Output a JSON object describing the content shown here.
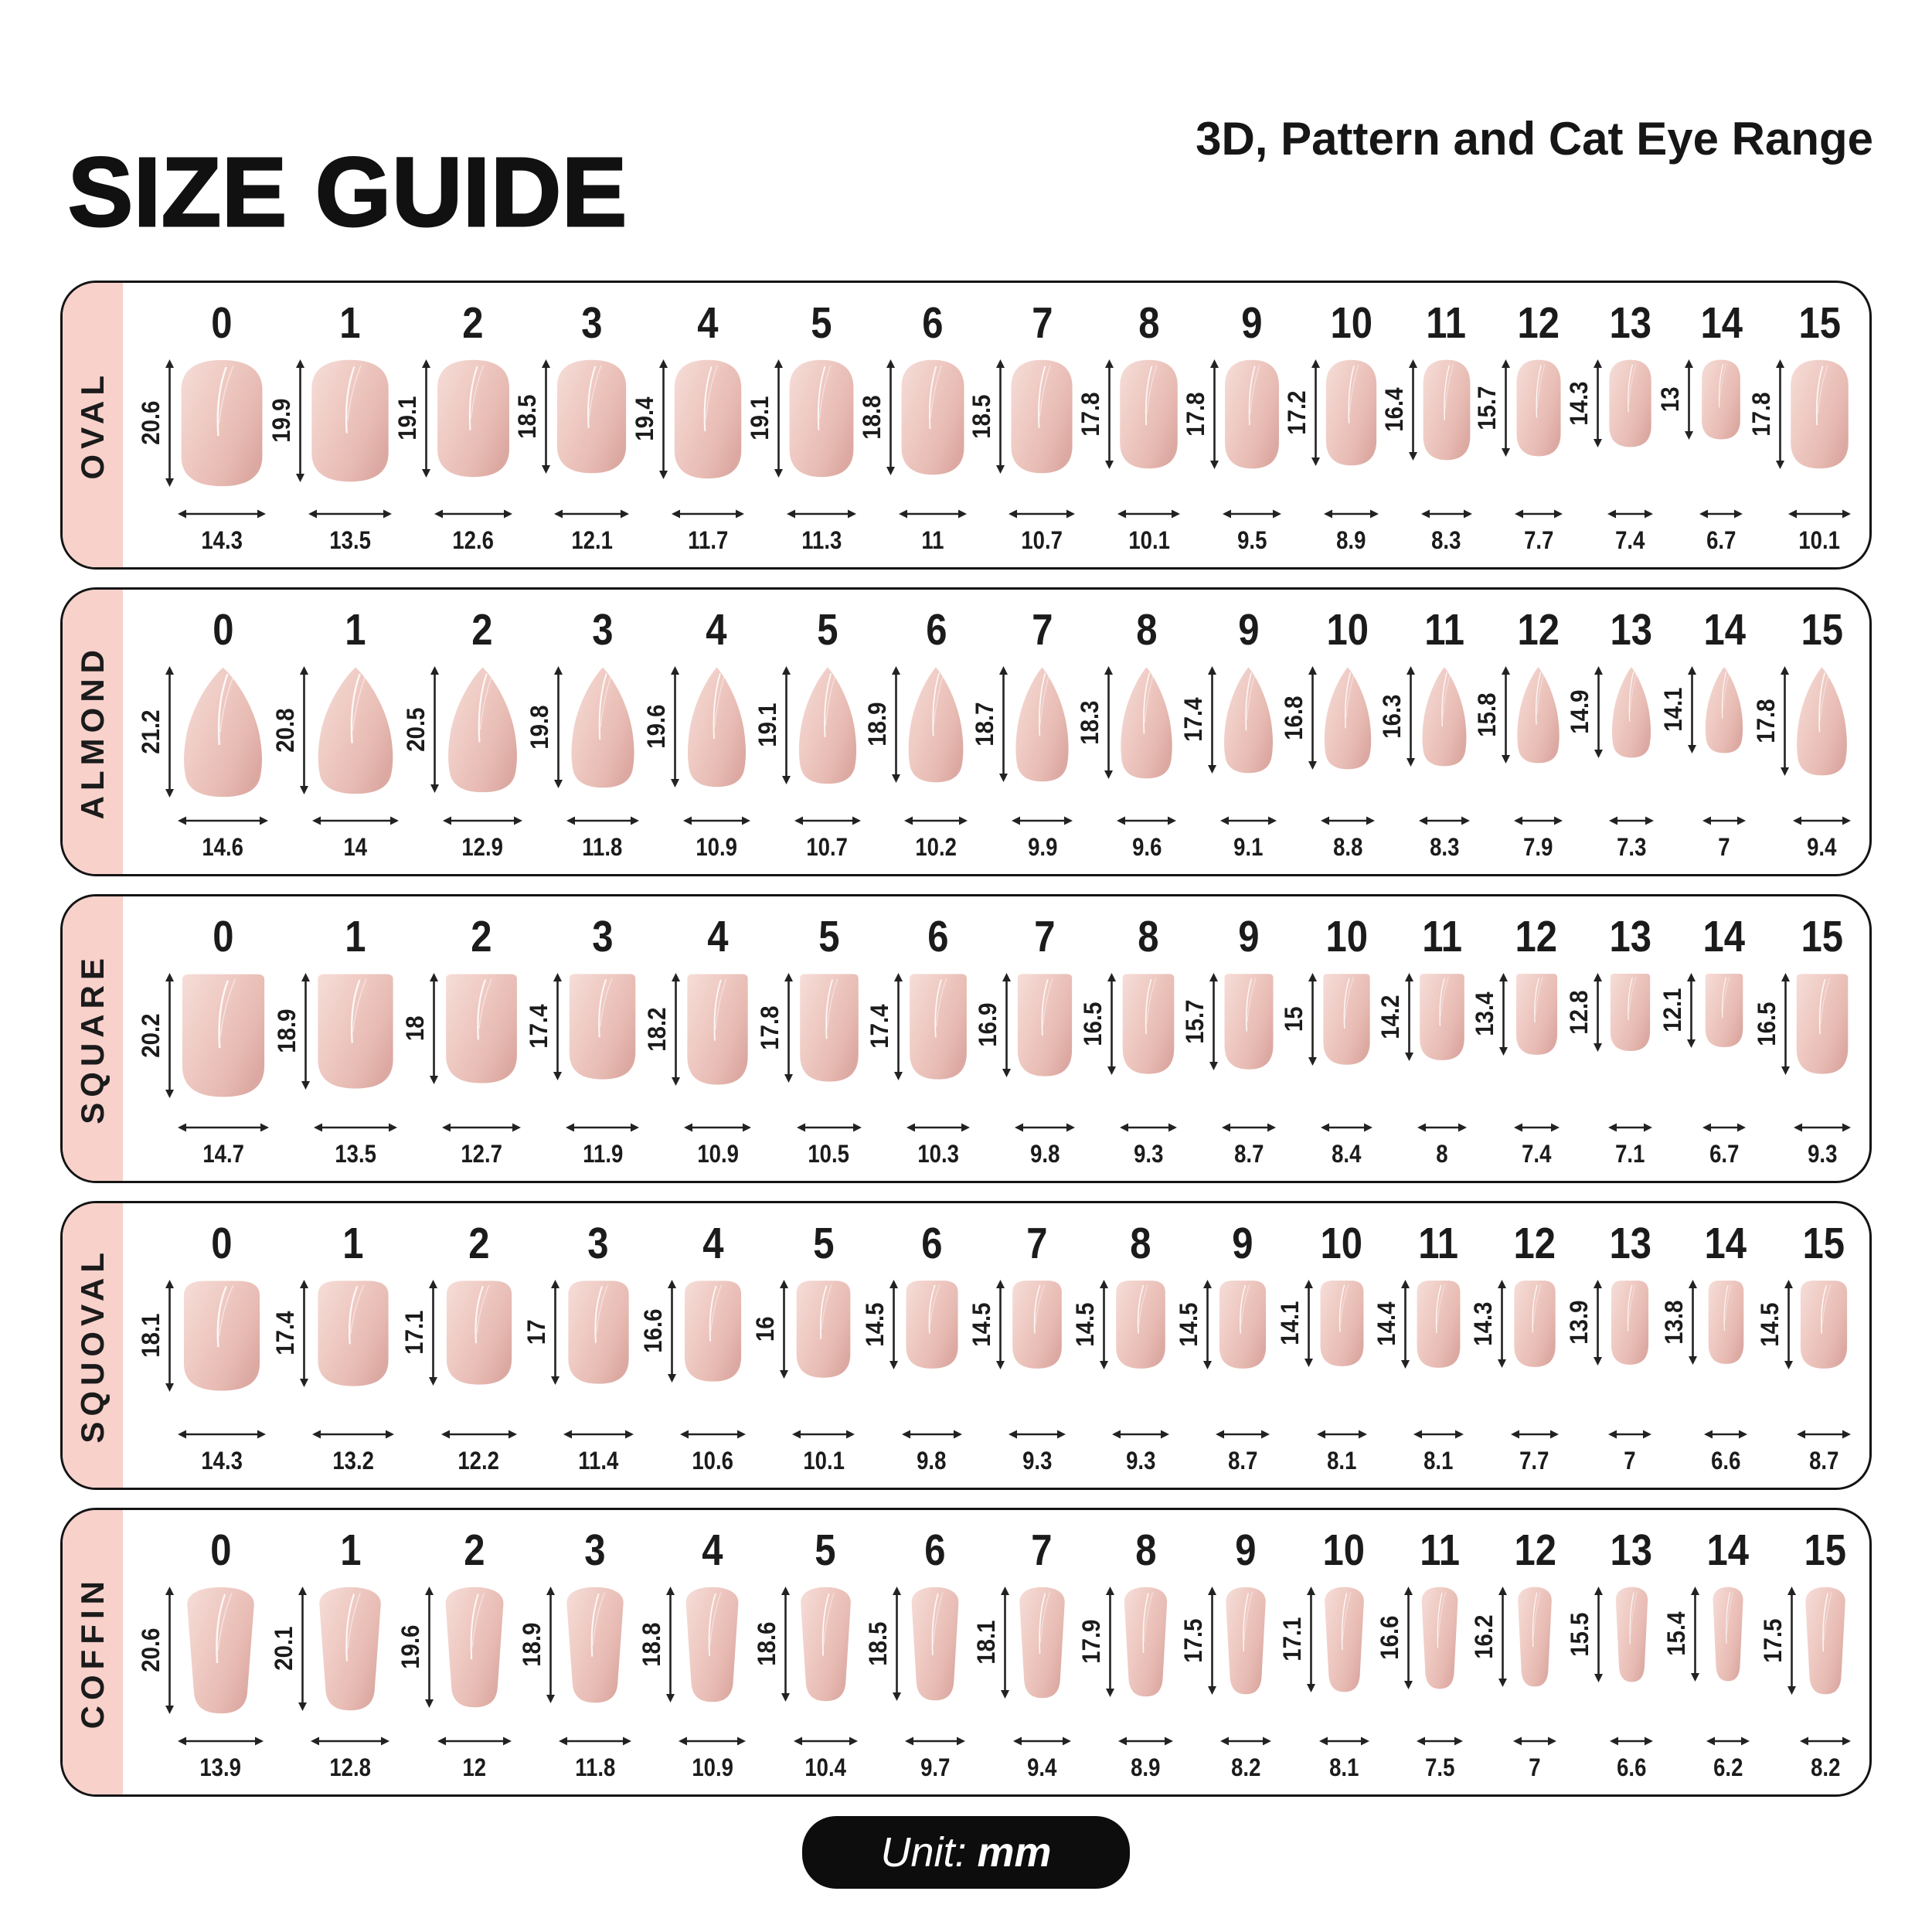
{
  "header": {
    "title": "SIZE GUIDE",
    "subtitle": "3D, Pattern and Cat Eye Range"
  },
  "unit": "mm",
  "footer": {
    "unit_prefix": "Unit:",
    "unit_value": "mm"
  },
  "sizes": [
    "0",
    "1",
    "2",
    "3",
    "4",
    "5",
    "6",
    "7",
    "8",
    "9",
    "10",
    "11",
    "12",
    "13",
    "14",
    "15"
  ],
  "rows": [
    {
      "shape": "OVAL",
      "key": "oval",
      "lengths_mm": [
        "20.6",
        "19.9",
        "19.1",
        "18.5",
        "19.4",
        "19.1",
        "18.8",
        "18.5",
        "17.8",
        "17.8",
        "17.2",
        "16.4",
        "15.7",
        "14.3",
        "13",
        "17.8"
      ],
      "widths_mm": [
        "14.3",
        "13.5",
        "12.6",
        "12.1",
        "11.7",
        "11.3",
        "11",
        "10.7",
        "10.1",
        "9.5",
        "8.9",
        "8.3",
        "7.7",
        "7.4",
        "6.7",
        "10.1"
      ]
    },
    {
      "shape": "ALMOND",
      "key": "almond",
      "lengths_mm": [
        "21.2",
        "20.8",
        "20.5",
        "19.8",
        "19.6",
        "19.1",
        "18.9",
        "18.7",
        "18.3",
        "17.4",
        "16.8",
        "16.3",
        "15.8",
        "14.9",
        "14.1",
        "17.8"
      ],
      "widths_mm": [
        "14.6",
        "14",
        "12.9",
        "11.8",
        "10.9",
        "10.7",
        "10.2",
        "9.9",
        "9.6",
        "9.1",
        "8.8",
        "8.3",
        "7.9",
        "7.3",
        "7",
        "9.4"
      ]
    },
    {
      "shape": "SQUARE",
      "key": "square",
      "lengths_mm": [
        "20.2",
        "18.9",
        "18",
        "17.4",
        "18.2",
        "17.8",
        "17.4",
        "16.9",
        "16.5",
        "15.7",
        "15",
        "14.2",
        "13.4",
        "12.8",
        "12.1",
        "16.5"
      ],
      "widths_mm": [
        "14.7",
        "13.5",
        "12.7",
        "11.9",
        "10.9",
        "10.5",
        "10.3",
        "9.8",
        "9.3",
        "8.7",
        "8.4",
        "8",
        "7.4",
        "7.1",
        "6.7",
        "9.3"
      ]
    },
    {
      "shape": "SQUOVAL",
      "key": "squoval",
      "lengths_mm": [
        "18.1",
        "17.4",
        "17.1",
        "17",
        "16.6",
        "16",
        "14.5",
        "14.5",
        "14.5",
        "14.5",
        "14.1",
        "14.4",
        "14.3",
        "13.9",
        "13.8",
        "14.5"
      ],
      "widths_mm": [
        "14.3",
        "13.2",
        "12.2",
        "11.4",
        "10.6",
        "10.1",
        "9.8",
        "9.3",
        "9.3",
        "8.7",
        "8.1",
        "8.1",
        "7.7",
        "7",
        "6.6",
        "8.7"
      ]
    },
    {
      "shape": "COFFIN",
      "key": "coffin",
      "lengths_mm": [
        "20.6",
        "20.1",
        "19.6",
        "18.9",
        "18.8",
        "18.6",
        "18.5",
        "18.1",
        "17.9",
        "17.5",
        "17.1",
        "16.6",
        "16.2",
        "15.5",
        "15.4",
        "17.5"
      ],
      "widths_mm": [
        "13.9",
        "12.8",
        "12",
        "11.8",
        "10.9",
        "10.4",
        "9.7",
        "9.4",
        "8.9",
        "8.2",
        "8.1",
        "7.5",
        "7",
        "6.6",
        "6.2",
        "8.2"
      ]
    }
  ],
  "colors": {
    "accent_pink": "#F8D1CB",
    "nail_light": "#F6DDD8",
    "nail_mid": "#EFCBC4",
    "nail_dark": "#DCA9A2",
    "ink": "#1B1B1B",
    "arrow": "#222222",
    "badge_bg": "#0D0D0D"
  }
}
